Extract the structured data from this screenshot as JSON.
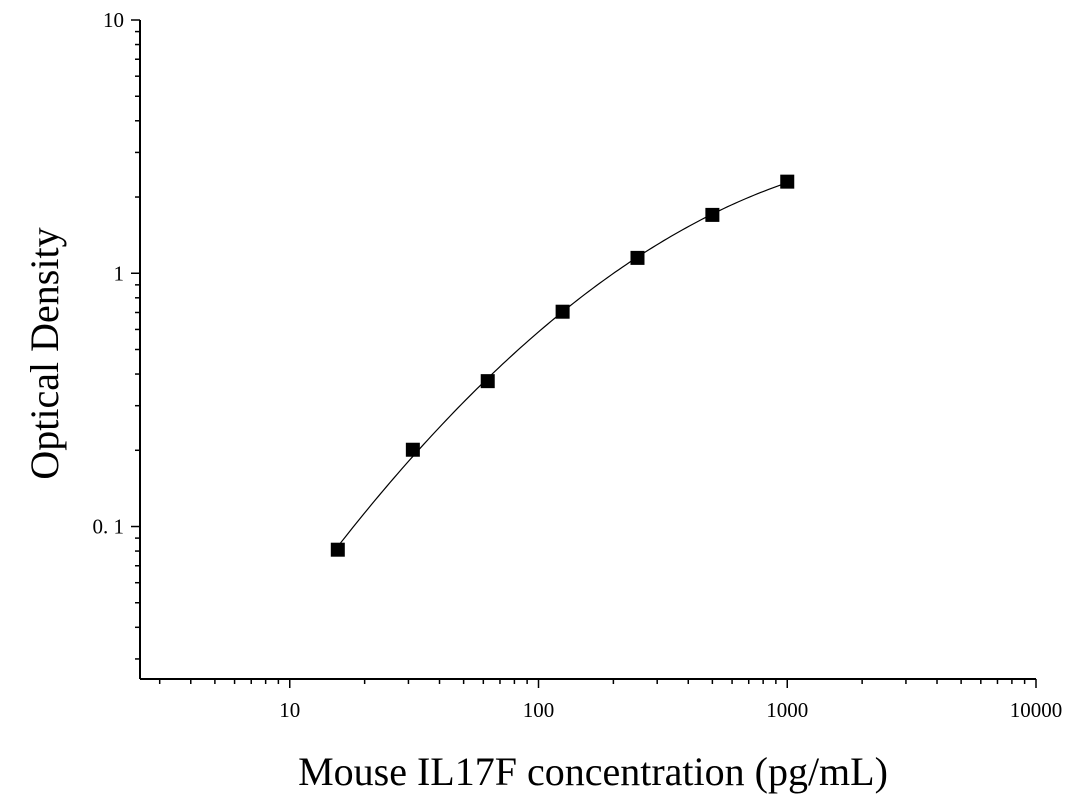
{
  "chart_data": {
    "type": "scatter",
    "title": "",
    "xlabel": "Mouse IL17F concentration (pg/mL)",
    "ylabel": "Optical Density",
    "x_scale": "log",
    "y_scale": "log",
    "xlim": [
      2.5,
      10000
    ],
    "ylim": [
      0.025,
      10
    ],
    "x_ticks": [
      10,
      100,
      1000,
      10000
    ],
    "x_tick_labels": [
      "10",
      "100",
      "1000",
      "10000"
    ],
    "y_ticks": [
      0.1,
      1,
      10
    ],
    "y_tick_labels": [
      "0. 1",
      "1",
      "10"
    ],
    "grid": false,
    "legend": "none",
    "marker": "square",
    "fit_curve": true,
    "color": "#000000",
    "series": [
      {
        "x": [
          15.6,
          31.25,
          62.5,
          125,
          250,
          500,
          1000
        ],
        "y": [
          0.081,
          0.201,
          0.375,
          0.705,
          1.15,
          1.7,
          2.3
        ]
      }
    ]
  }
}
